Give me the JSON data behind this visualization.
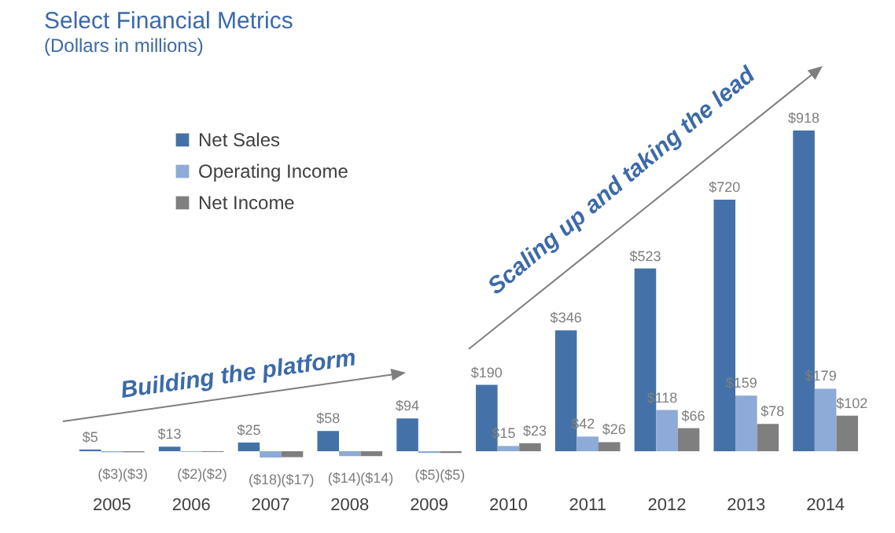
{
  "chart_data": {
    "type": "bar",
    "title": "Select Financial Metrics",
    "subtitle": "(Dollars in millions)",
    "categories": [
      "2005",
      "2006",
      "2007",
      "2008",
      "2009",
      "2010",
      "2011",
      "2012",
      "2013",
      "2014"
    ],
    "series": [
      {
        "name": "Net Sales",
        "color": "#4472a8",
        "values": [
          5,
          13,
          25,
          58,
          94,
          190,
          346,
          523,
          720,
          918
        ],
        "value_labels": [
          "$5",
          "$13",
          "$25",
          "$58",
          "$94",
          "$190",
          "$346",
          "$523",
          "$720",
          "$918"
        ]
      },
      {
        "name": "Operating Income",
        "color": "#8eaad6",
        "values": [
          -3,
          -2,
          -18,
          -14,
          -5,
          15,
          42,
          118,
          159,
          179
        ],
        "value_labels": [
          "($3)",
          "($2)",
          "($18)",
          "($14)",
          "($5)",
          "$15",
          "$42",
          "$118",
          "$159",
          "$179"
        ]
      },
      {
        "name": "Net Income",
        "color": "#7f7f7f",
        "values": [
          -3,
          -2,
          -17,
          -14,
          -5,
          23,
          26,
          66,
          78,
          102
        ],
        "value_labels": [
          "($3)",
          "($2)",
          "($17)",
          "($14)",
          "($5)",
          "$23",
          "$26",
          "$66",
          "$78",
          "$102"
        ]
      }
    ],
    "annotations": [
      "Building the platform",
      "Scaling up and taking the lead"
    ],
    "legend": "top left",
    "grid": false
  }
}
